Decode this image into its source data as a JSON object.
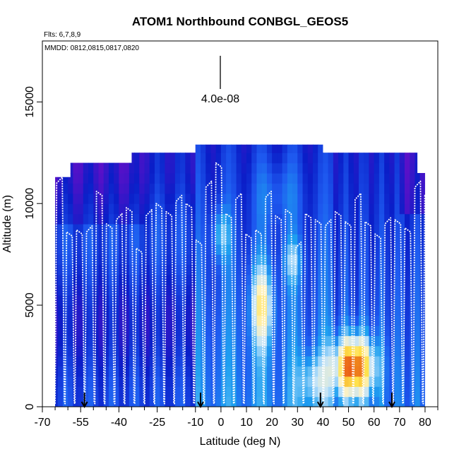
{
  "chart_data": {
    "type": "heatmap",
    "title": "ATOM1 Northbound CONBGL_GEOS5",
    "flights_note": "Flts: 6,7,8,9",
    "dates_note": "MMDD: 0812,0815,0817,0820",
    "xlabel": "Latitude (deg N)",
    "ylabel": "Altitude (m)",
    "xlim": [
      -70,
      85
    ],
    "ylim": [
      0,
      18000
    ],
    "x_ticks": [
      "-70",
      "-55",
      "-40",
      "-25",
      "-10",
      "0",
      "10",
      "20",
      "30",
      "40",
      "50",
      "60",
      "70",
      "80"
    ],
    "x_tick_values": [
      -70,
      -55,
      -40,
      -25,
      -10,
      0,
      10,
      20,
      30,
      40,
      50,
      60,
      70,
      80
    ],
    "y_ticks": [
      "0",
      "5000",
      "10000",
      "15000"
    ],
    "y_tick_values": [
      0,
      5000,
      10000,
      15000
    ],
    "scale_bar_label": "4.0e-08",
    "profile_markers_lat": [
      -53.5,
      -8,
      39,
      67
    ],
    "curtain_extent": {
      "segments": [
        {
          "lat_from": -65,
          "lat_to": -59,
          "top_alt": 11300
        },
        {
          "lat_from": -59,
          "lat_to": -35,
          "top_alt": 12000
        },
        {
          "lat_from": -35,
          "lat_to": -10,
          "top_alt": 12500
        },
        {
          "lat_from": -10,
          "lat_to": 40,
          "top_alt": 12900
        },
        {
          "lat_from": 40,
          "lat_to": 77,
          "top_alt": 12500
        },
        {
          "lat_from": 77,
          "lat_to": 80,
          "top_alt": 11500
        }
      ]
    },
    "features": [
      {
        "name": "high concentration boundary-layer plume",
        "lat_range": [
          46,
          58
        ],
        "alt_range": [
          800,
          3500
        ],
        "level": "high"
      },
      {
        "name": "mid-level enhancement",
        "lat_range": [
          14,
          20
        ],
        "alt_range": [
          3500,
          6500
        ],
        "level": "medium"
      },
      {
        "name": "upper tropospheric low values",
        "lat_range": [
          -60,
          -30
        ],
        "alt_range": [
          9000,
          12000
        ],
        "level": "low"
      }
    ],
    "colormap": [
      "#5a10c8",
      "#0a1ec8",
      "#1e5af0",
      "#1ea0f0",
      "#bfe2fb",
      "#fff2c0",
      "#ffe14a",
      "#f08a1c",
      "#e01010",
      "#a00000"
    ]
  }
}
